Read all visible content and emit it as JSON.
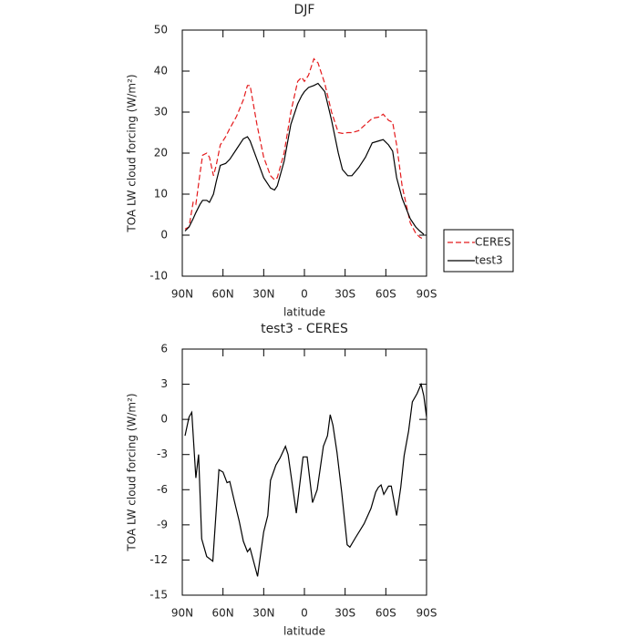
{
  "chart_data": [
    {
      "type": "line",
      "title": "DJF",
      "xlabel": "latitude",
      "ylabel": "TOA LW cloud forcing (W/m²)",
      "x": [
        88,
        85,
        82,
        80,
        77,
        75,
        72,
        70,
        67,
        65,
        62,
        58,
        55,
        50,
        45,
        42,
        40,
        35,
        30,
        25,
        22,
        20,
        15,
        10,
        5,
        2,
        0,
        -3,
        -7,
        -10,
        -15,
        -20,
        -25,
        -28,
        -32,
        -35,
        -40,
        -45,
        -50,
        -55,
        -58,
        -62,
        -65,
        -68,
        -72,
        -78,
        -82,
        -85,
        -88
      ],
      "series": [
        {
          "name": "CERES",
          "color": "#e41a1c",
          "style": "dashed",
          "values": [
            1.5,
            2,
            8,
            7.5,
            15,
            19.5,
            20,
            19,
            14.5,
            17,
            22,
            24,
            26,
            29,
            33,
            36.5,
            36.5,
            27,
            19,
            14.5,
            13.5,
            14,
            20,
            30,
            37.5,
            38.5,
            37.5,
            39,
            43,
            42,
            37,
            30,
            25,
            24.8,
            25,
            25,
            25.5,
            27,
            28.5,
            28.8,
            29.5,
            28,
            27.5,
            22,
            12,
            3,
            0.5,
            -0.5,
            -1
          ]
        },
        {
          "name": "test3",
          "color": "#000000",
          "style": "solid",
          "values": [
            1,
            2,
            4,
            5.5,
            7.5,
            8.5,
            8.5,
            8,
            10,
            13,
            17,
            17.5,
            18.5,
            21,
            23.5,
            24,
            23,
            18.5,
            14,
            11.5,
            11,
            12,
            18,
            27,
            32,
            34,
            35,
            36,
            36.5,
            37,
            35,
            28,
            20,
            16,
            14.5,
            14.5,
            16.5,
            19,
            22.5,
            23,
            23.3,
            22,
            20.5,
            14,
            9,
            4,
            2,
            1,
            0.2
          ]
        }
      ],
      "xlim": [
        90,
        -90
      ],
      "xticks": [
        {
          "value": 90,
          "label": "90N"
        },
        {
          "value": 60,
          "label": "60N"
        },
        {
          "value": 30,
          "label": "30N"
        },
        0,
        {
          "value": -30,
          "label": "30S"
        },
        {
          "value": -60,
          "label": "60S"
        },
        {
          "value": -90,
          "label": "90S"
        }
      ],
      "ylim": [
        -10,
        50
      ],
      "yticks": [
        -10,
        0,
        10,
        20,
        30,
        40,
        50
      ],
      "legend": "right"
    },
    {
      "type": "line",
      "title": "test3 - CERES",
      "xlabel": "latitude",
      "ylabel": "TOA LW cloud forcing (W/m²)",
      "x": [
        88,
        85,
        83,
        80,
        78,
        75.7,
        72,
        67.5,
        63,
        60,
        57,
        55,
        52,
        48,
        45,
        42,
        40,
        34.5,
        30,
        27,
        25,
        21,
        18,
        14,
        12,
        6,
        1,
        -2,
        -6,
        -9.4,
        -14,
        -17,
        -19,
        -21,
        -24,
        -27.5,
        -31.5,
        -33.5,
        -37.6,
        -44,
        -49,
        -52.5,
        -54.5,
        -56.5,
        -58.5,
        -62,
        -64,
        -68,
        -71,
        -73.5,
        -76.8,
        -79.5,
        -83,
        -86,
        -88,
        -90
      ],
      "values": [
        -1.4,
        0.2,
        0.6,
        -5,
        -3,
        -10.2,
        -11.7,
        -12.1,
        -4.3,
        -4.5,
        -5.4,
        -5.3,
        -6.8,
        -8.7,
        -10.4,
        -11.3,
        -11,
        -13.4,
        -9.6,
        -8.2,
        -5.2,
        -3.9,
        -3.3,
        -2.3,
        -3,
        -8,
        -3.2,
        -3.2,
        -7.1,
        -6,
        -2.3,
        -1.4,
        0.4,
        -0.5,
        -2.8,
        -6.2,
        -10.7,
        -10.9,
        -10.1,
        -8.9,
        -7.6,
        -6.2,
        -5.8,
        -5.6,
        -6.4,
        -5.7,
        -5.7,
        -8.2,
        -5.8,
        -3.1,
        -1,
        1.5,
        2.2,
        3,
        2,
        0.2
      ],
      "color": "#000000",
      "xlim": [
        90,
        -90
      ],
      "xticks": [
        {
          "value": 90,
          "label": "90N"
        },
        {
          "value": 60,
          "label": "60N"
        },
        {
          "value": 30,
          "label": "30N"
        },
        0,
        {
          "value": -30,
          "label": "30S"
        },
        {
          "value": -60,
          "label": "60S"
        },
        {
          "value": -90,
          "label": "90S"
        }
      ],
      "ylim": [
        -15,
        6
      ],
      "yticks": [
        -15,
        -12,
        -9,
        -6,
        -3,
        0,
        3,
        6
      ]
    }
  ]
}
